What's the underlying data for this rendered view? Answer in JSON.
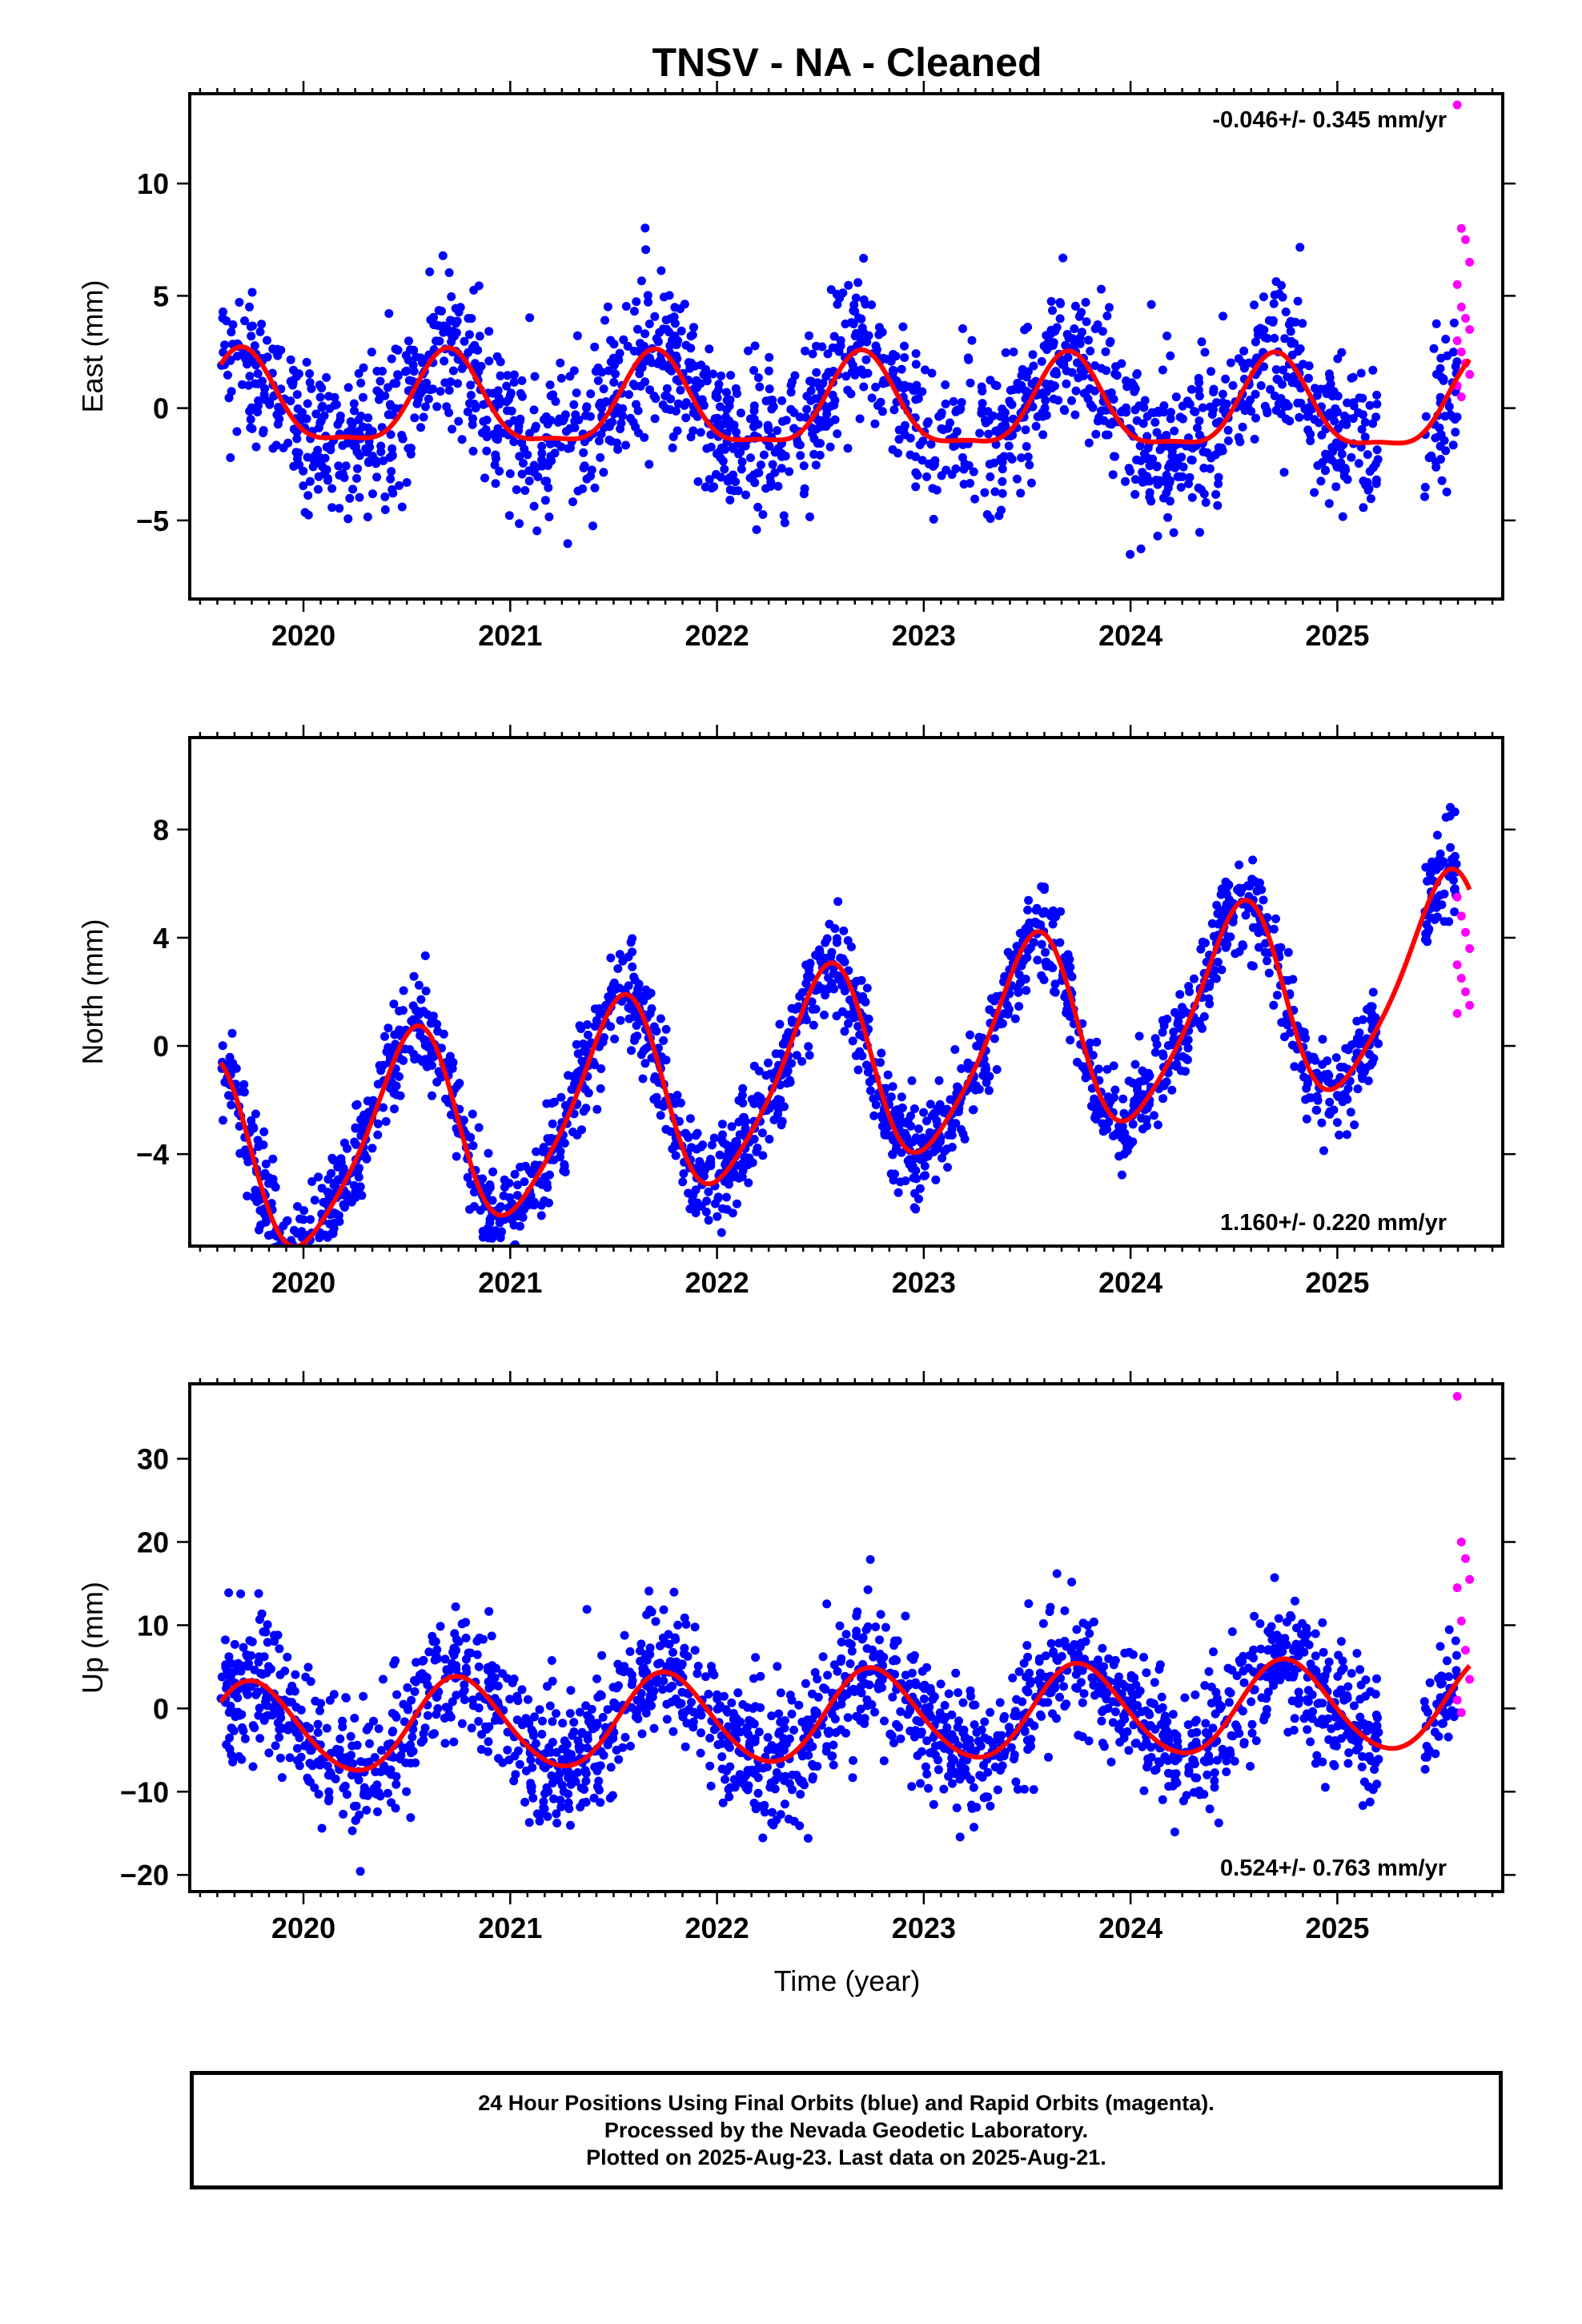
{
  "title": "TNSV  - NA - Cleaned",
  "colors": {
    "final_orbits": "#0000ff",
    "rapid_orbits": "#ff00ff",
    "model_fit": "#ff0000",
    "axes": "#000000"
  },
  "x_axis_label": "Time (year)",
  "footer": {
    "line1": "24 Hour Positions Using Final Orbits (blue) and Rapid Orbits (magenta).",
    "line2": "Processed by the Nevada Geodetic Laboratory.",
    "line3": "Plotted on 2025-Aug-23. Last data on 2025-Aug-21."
  },
  "chart_data": [
    {
      "type": "scatter",
      "ylabel": "East (mm)",
      "rate_text": "-0.046+/- 0.345 mm/yr",
      "xlim": [
        2019.45,
        2025.8
      ],
      "ylim": [
        -8.5,
        14
      ],
      "x_ticks": [
        2020,
        2021,
        2022,
        2023,
        2024,
        2025
      ],
      "y_ticks": [
        -5,
        0,
        5,
        10
      ],
      "grid": false,
      "fit": {
        "offset": 0.0,
        "rate": -0.046,
        "annual_amp": 2.0,
        "annual_peak": 0.7,
        "semiannual_amp": 0.6,
        "semiannual_peak": 0.2,
        "noise_sd": 1.7
      },
      "series": [
        {
          "color": "#0000ff",
          "x_start": 2019.6,
          "x_end": 2025.58,
          "count": 1900
        },
        {
          "color": "#ff00ff",
          "x_start": 2025.58,
          "x_end": 2025.64,
          "values": [
            13.5,
            8.0,
            7.5,
            6.5,
            5.5,
            4.5,
            4.0,
            3.5,
            3.0,
            2.5,
            2.0,
            1.5,
            1.0,
            0.5
          ]
        },
        {
          "color": "#ff0000",
          "x_start": 2019.6,
          "x_end": 2025.64,
          "type": "line"
        }
      ]
    },
    {
      "type": "scatter",
      "ylabel": "North (mm)",
      "rate_text": "1.160+/- 0.220 mm/yr",
      "xlim": [
        2019.45,
        2025.8
      ],
      "ylim": [
        -7.4,
        11.4
      ],
      "x_ticks": [
        2020,
        2021,
        2022,
        2023,
        2024,
        2025
      ],
      "y_ticks": [
        -4,
        0,
        4,
        8
      ],
      "grid": false,
      "fit": {
        "offset": -0.9,
        "rate": 1.16,
        "annual_amp": 3.6,
        "annual_peak": 0.52,
        "semiannual_amp": 0.6,
        "semiannual_peak": 0.1,
        "noise_sd": 0.9
      },
      "series": [
        {
          "color": "#0000ff",
          "x_start": 2019.6,
          "x_end": 2025.58,
          "count": 2000
        },
        {
          "color": "#ff00ff",
          "x_start": 2025.58,
          "x_end": 2025.64,
          "values": [
            5.5,
            4.8,
            4.2,
            3.6,
            3.0,
            2.5,
            2.0,
            1.5,
            1.2
          ]
        },
        {
          "color": "#ff0000",
          "x_start": 2019.6,
          "x_end": 2025.64,
          "type": "line"
        }
      ]
    },
    {
      "type": "scatter",
      "ylabel": "Up (mm)",
      "rate_text": "0.524+/- 0.763 mm/yr",
      "xlim": [
        2019.45,
        2025.8
      ],
      "ylim": [
        -22,
        39
      ],
      "x_ticks": [
        2020,
        2021,
        2022,
        2023,
        2024,
        2025
      ],
      "y_ticks": [
        -20,
        -10,
        0,
        10,
        20,
        30
      ],
      "grid": false,
      "fit": {
        "offset": -1.0,
        "rate": 0.524,
        "annual_amp": 5.5,
        "annual_peak": 0.75,
        "semiannual_amp": 0.4,
        "semiannual_peak": 0.2,
        "noise_sd": 4.0
      },
      "series": [
        {
          "color": "#0000ff",
          "x_start": 2019.6,
          "x_end": 2025.58,
          "count": 2000
        },
        {
          "color": "#ff00ff",
          "x_start": 2025.58,
          "x_end": 2025.64,
          "values": [
            37.5,
            20.0,
            18.0,
            15.5,
            14.5,
            10.5,
            7.0,
            3.5,
            1.0,
            -0.5
          ]
        },
        {
          "color": "#ff0000",
          "x_start": 2019.6,
          "x_end": 2025.64,
          "type": "line"
        }
      ]
    }
  ]
}
